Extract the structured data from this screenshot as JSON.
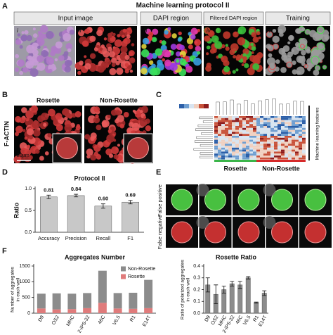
{
  "panel_a": {
    "letter": "A",
    "title": "Machine learning protocol II",
    "steps": [
      "Input image",
      "DAPI region",
      "Filtered DAPI region",
      "Training"
    ],
    "sublabels": [
      "i",
      "ii",
      "iii",
      "iv",
      "v"
    ]
  },
  "panel_b": {
    "letter": "B",
    "stain": "F-ACTIN",
    "columns": [
      "Rosette",
      "Non-Rosette"
    ],
    "scale": "20µm"
  },
  "panel_c": {
    "letter": "C",
    "side_label": "Machine learning features",
    "groups": [
      "Rosette",
      "Non-Rosette"
    ]
  },
  "panel_d": {
    "letter": "D",
    "chart": {
      "type": "bar",
      "title": "Protocol II",
      "ylabel": "Ratio",
      "categories": [
        "Accuracy",
        "Precision",
        "Recall",
        "F1"
      ],
      "values": [
        0.81,
        0.84,
        0.6,
        0.69
      ],
      "value_labels": [
        "0.81",
        "0.84",
        "0.60",
        "0.69"
      ],
      "errors": [
        0.04,
        0.03,
        0.05,
        0.04
      ],
      "color": "#c8c8c8",
      "ylim": [
        0,
        1
      ],
      "yticks": [
        {
          "value": 0,
          "label": "0.0"
        },
        0.5,
        {
          "value": 1,
          "label": "1.0"
        }
      ]
    }
  },
  "panel_e": {
    "letter": "E",
    "rows": [
      "False positive",
      "False negative"
    ]
  },
  "panel_f": {
    "letter": "F",
    "charts": [
      {
        "type": "stacked_bar",
        "title": "Aggregates Number",
        "ylabel_lines": [
          "Number of aggregates",
          "in each well"
        ],
        "categories": [
          "D9",
          "OS2",
          "MHC",
          "2-iPS-32",
          "46C",
          "V6.5",
          "R1",
          "E14T"
        ],
        "series": [
          {
            "name": "Rosette",
            "color": "#e07b7b",
            "values": [
              150,
              120,
              130,
              160,
              330,
              150,
              140,
              160
            ]
          },
          {
            "name": "Non-Rosette",
            "color": "#8c8c8c",
            "values": [
              470,
              510,
              490,
              480,
              1020,
              490,
              510,
              900
            ]
          }
        ],
        "ylim": [
          0,
          1500
        ],
        "yticks": [
          0,
          500,
          1000,
          1500
        ]
      },
      {
        "type": "bar",
        "title": "Rosette Ratio",
        "ylabel_lines": [
          "Ratio of polarized aggregates",
          "in each well"
        ],
        "categories": [
          "D9",
          "OS2",
          "MHC",
          "2-iPS-32",
          "46C",
          "V6.5",
          "R1",
          "E14T"
        ],
        "values": [
          0.24,
          0.16,
          0.2,
          0.25,
          0.24,
          0.3,
          0.09,
          0.17
        ],
        "errors": [
          0.06,
          0.08,
          0.03,
          0.02,
          0.03,
          0.01,
          0.005,
          0.02
        ],
        "color": "#8c8c8c",
        "ylim": [
          0,
          0.4
        ],
        "yticks": [
          {
            "value": 0,
            "label": "0.0"
          },
          0.1,
          0.2,
          0.3,
          0.4
        ]
      }
    ]
  }
}
